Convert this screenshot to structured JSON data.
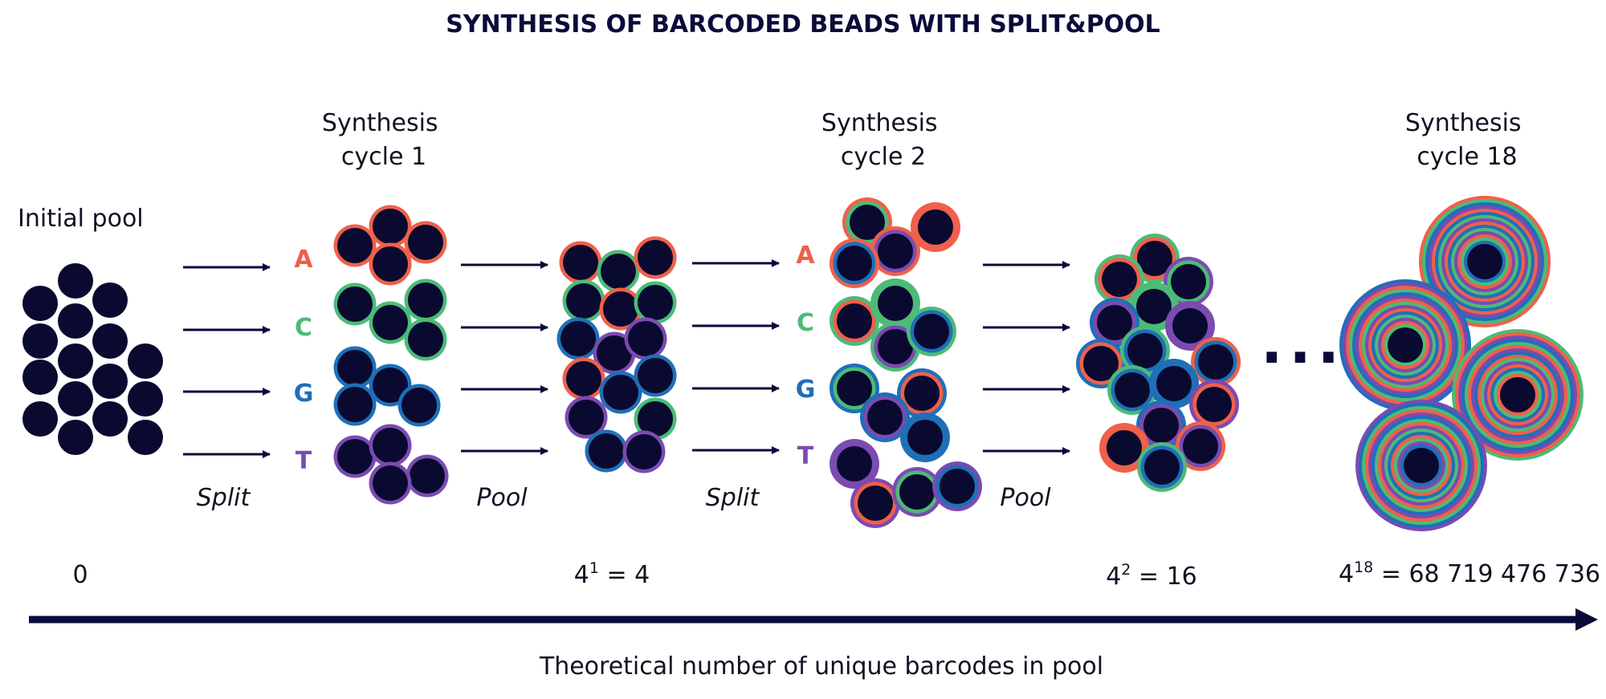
{
  "title": "SYNTHESIS OF BARCODED BEADS WITH SPLIT&POOL",
  "stages": {
    "initial": "Initial pool",
    "cycle1": [
      "Synthesis",
      "cycle 1"
    ],
    "cycle2": [
      "Synthesis",
      "cycle 2"
    ],
    "cycle18": [
      "Synthesis",
      "cycle 18"
    ]
  },
  "steps": {
    "split1": "Split",
    "pool1": "Pool",
    "split2": "Split",
    "pool2": "Pool"
  },
  "bases": [
    {
      "letter": "A",
      "color": "#f0604a"
    },
    {
      "letter": "C",
      "color": "#4cbb78"
    },
    {
      "letter": "G",
      "color": "#1f6fb8"
    },
    {
      "letter": "T",
      "color": "#7b4bb0"
    }
  ],
  "bead_color": "#0a0a30",
  "counts": {
    "c0": "0",
    "c1_base": "4",
    "c1_exp": "1",
    "c1_rest": " = 4",
    "c2_base": "4",
    "c2_exp": "2",
    "c2_rest": " = 16",
    "c18_base": "4",
    "c18_exp": "18",
    "c18_rest": " = 68 719 476 736"
  },
  "ellipsis": "...",
  "axis_label": "Theoretical number of unique barcodes in pool",
  "axis_color": "#0a0a3a"
}
